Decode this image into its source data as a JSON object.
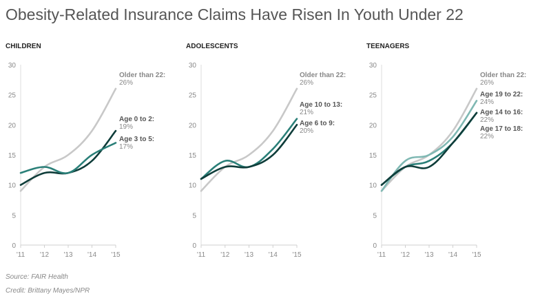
{
  "title": "Obesity-Related Insurance Claims Have Risen In Youth Under 22",
  "source": "Source: FAIR Health",
  "credit": "Credit: Brittany Mayes/NPR",
  "colors": {
    "older": "#c8c8c8",
    "dark": "#0f3d3a",
    "teal": "#2a7f78",
    "light_teal": "#7fb8b3",
    "axis_text": "#888888",
    "label_text": "#888888"
  },
  "chart_data": [
    {
      "type": "line",
      "title": "CHILDREN",
      "categories": [
        "'11",
        "'12",
        "'13",
        "'14",
        "'15"
      ],
      "ylim": [
        0,
        30
      ],
      "yticks": [
        0,
        5,
        10,
        15,
        20,
        25,
        30
      ],
      "series": [
        {
          "name": "Older than 22:",
          "value_label": "26%",
          "values": [
            9,
            13,
            15,
            19,
            26
          ],
          "color_key": "older"
        },
        {
          "name": "Age 0 to 2:",
          "value_label": "19%",
          "values": [
            10,
            12,
            12,
            14,
            19
          ],
          "color_key": "dark"
        },
        {
          "name": "Age 3 to 5:",
          "value_label": "17%",
          "values": [
            12,
            13,
            12,
            15,
            17
          ],
          "color_key": "teal"
        }
      ]
    },
    {
      "type": "line",
      "title": "ADOLESCENTS",
      "categories": [
        "'11",
        "'12",
        "'13",
        "'14",
        "'15"
      ],
      "ylim": [
        0,
        30
      ],
      "yticks": [
        0,
        5,
        10,
        15,
        20,
        25,
        30
      ],
      "series": [
        {
          "name": "Older than 22:",
          "value_label": "26%",
          "values": [
            9,
            13,
            15,
            19,
            26
          ],
          "color_key": "older"
        },
        {
          "name": "Age 10 to 13:",
          "value_label": "21%",
          "values": [
            11,
            14,
            13,
            16,
            21
          ],
          "color_key": "teal"
        },
        {
          "name": "Age 6 to 9:",
          "value_label": "20%",
          "values": [
            11,
            13,
            13,
            15,
            20
          ],
          "color_key": "dark"
        }
      ]
    },
    {
      "type": "line",
      "title": "TEENAGERS",
      "categories": [
        "'11",
        "'12",
        "'13",
        "'14",
        "'15"
      ],
      "ylim": [
        0,
        30
      ],
      "yticks": [
        0,
        5,
        10,
        15,
        20,
        25,
        30
      ],
      "series": [
        {
          "name": "Older than 22:",
          "value_label": "26%",
          "values": [
            9,
            13,
            15,
            19,
            26
          ],
          "color_key": "older"
        },
        {
          "name": "Age 19 to 22:",
          "value_label": "24%",
          "values": [
            9,
            14,
            15,
            18,
            24
          ],
          "color_key": "light_teal"
        },
        {
          "name": "Age 14 to 16:",
          "value_label": "22%",
          "values": [
            10,
            13,
            14,
            17,
            22
          ],
          "color_key": "teal"
        },
        {
          "name": "Age 17 to 18:",
          "value_label": "22%",
          "values": [
            10,
            13,
            13,
            17,
            22
          ],
          "color_key": "dark"
        }
      ]
    }
  ]
}
